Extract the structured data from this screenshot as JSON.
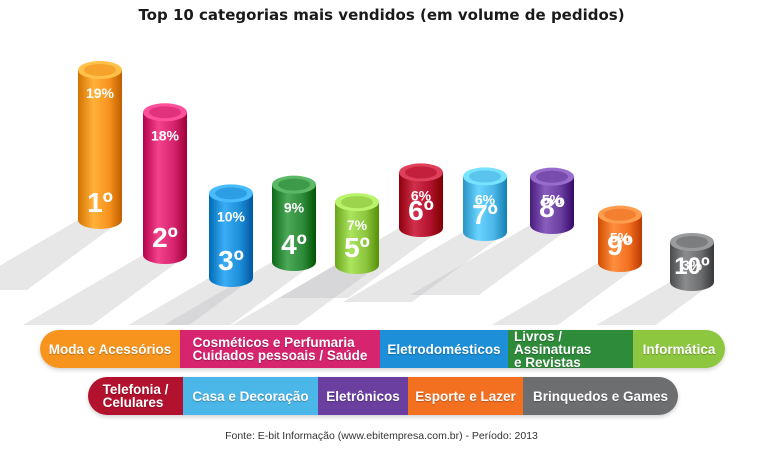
{
  "title": "Top 10 categorias mais vendidos (em volume de pedidos)",
  "source": "Fonte: E-bit Informação (www.ebitempresa.com.br) - Período: 2013",
  "colors": {
    "orange": "#F7941D",
    "magenta": "#D6246E",
    "blue": "#1C8FD8",
    "green": "#2E8B3A",
    "lime": "#8DC63F",
    "red": "#B3122E",
    "sky": "#4BB6E8",
    "purple": "#6B3FA0",
    "orange2": "#F37021",
    "gray": "#6D6E70"
  },
  "chart_data": {
    "type": "bar",
    "title": "Top 10 categorias mais vendidos (em volume de pedidos)",
    "categories": [
      "1º",
      "2º",
      "3º",
      "4º",
      "5º",
      "6º",
      "7º",
      "8º",
      "9º",
      "10º"
    ],
    "values": [
      19,
      18,
      10,
      9,
      7,
      6,
      6,
      5,
      5,
      3
    ],
    "value_labels": [
      "19%",
      "18%",
      "10%",
      "9%",
      "7%",
      "6%",
      "6%",
      "5%",
      "5%",
      "3%"
    ],
    "series_colors": [
      "#F7941D",
      "#D6246E",
      "#1C8FD8",
      "#2E8B3A",
      "#8DC63F",
      "#B3122E",
      "#4BB6E8",
      "#6B3FA0",
      "#F37021",
      "#6D6E70"
    ],
    "unit": "%"
  },
  "legend": {
    "row1": [
      {
        "label": "Moda e Acessórios",
        "color": "#F7941D"
      },
      {
        "label": "Cosméticos e Perfumaria\nCuidados pessoais /  Saúde",
        "color": "#D6246E"
      },
      {
        "label": "Eletrodomésticos",
        "color": "#1C8FD8"
      },
      {
        "label": "Livros / Assinaturas\ne Revistas",
        "color": "#2E8B3A"
      },
      {
        "label": "Informática",
        "color": "#8DC63F"
      }
    ],
    "row2": [
      {
        "label": "Telefonia /\nCelulares",
        "color": "#B3122E"
      },
      {
        "label": "Casa e Decoração",
        "color": "#4BB6E8"
      },
      {
        "label": "Eletrônicos",
        "color": "#6B3FA0"
      },
      {
        "label": "Esporte e Lazer",
        "color": "#F37021"
      },
      {
        "label": "Brinquedos e Games",
        "color": "#6D6E70"
      }
    ]
  }
}
